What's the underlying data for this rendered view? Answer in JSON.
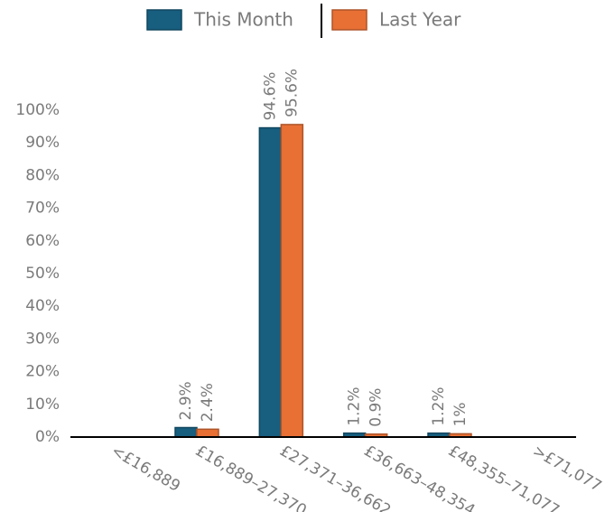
{
  "chart_data": {
    "type": "bar",
    "categories": [
      "<£16,889",
      "£16,889–27,370",
      "£27,371–36,662",
      "£36,663–48,354",
      "£48,355–71,077",
      ">£71,077"
    ],
    "series": [
      {
        "name": "This Month",
        "color": "#175e7f",
        "values": [
          null,
          2.9,
          94.6,
          1.2,
          1.2,
          null
        ],
        "value_labels": [
          null,
          "2.9%",
          "94.6%",
          "1.2%",
          "1.2%",
          null
        ]
      },
      {
        "name": "Last Year",
        "color": "#e87035",
        "values": [
          null,
          2.4,
          95.6,
          0.9,
          1,
          null
        ],
        "value_labels": [
          null,
          "2.4%",
          "95.6%",
          "0.9%",
          "1%",
          null
        ]
      }
    ],
    "ylim": [
      0,
      100
    ],
    "yticks": [
      {
        "value": 0,
        "label": "0%"
      },
      {
        "value": 10,
        "label": "10%"
      },
      {
        "value": 20,
        "label": "20%"
      },
      {
        "value": 30,
        "label": "30%"
      },
      {
        "value": 40,
        "label": "40%"
      },
      {
        "value": 50,
        "label": "50%"
      },
      {
        "value": 60,
        "label": "60%"
      },
      {
        "value": 70,
        "label": "70%"
      },
      {
        "value": 80,
        "label": "80%"
      },
      {
        "value": 90,
        "label": "90%"
      },
      {
        "value": 100,
        "label": "100%"
      }
    ],
    "legend": "top"
  }
}
